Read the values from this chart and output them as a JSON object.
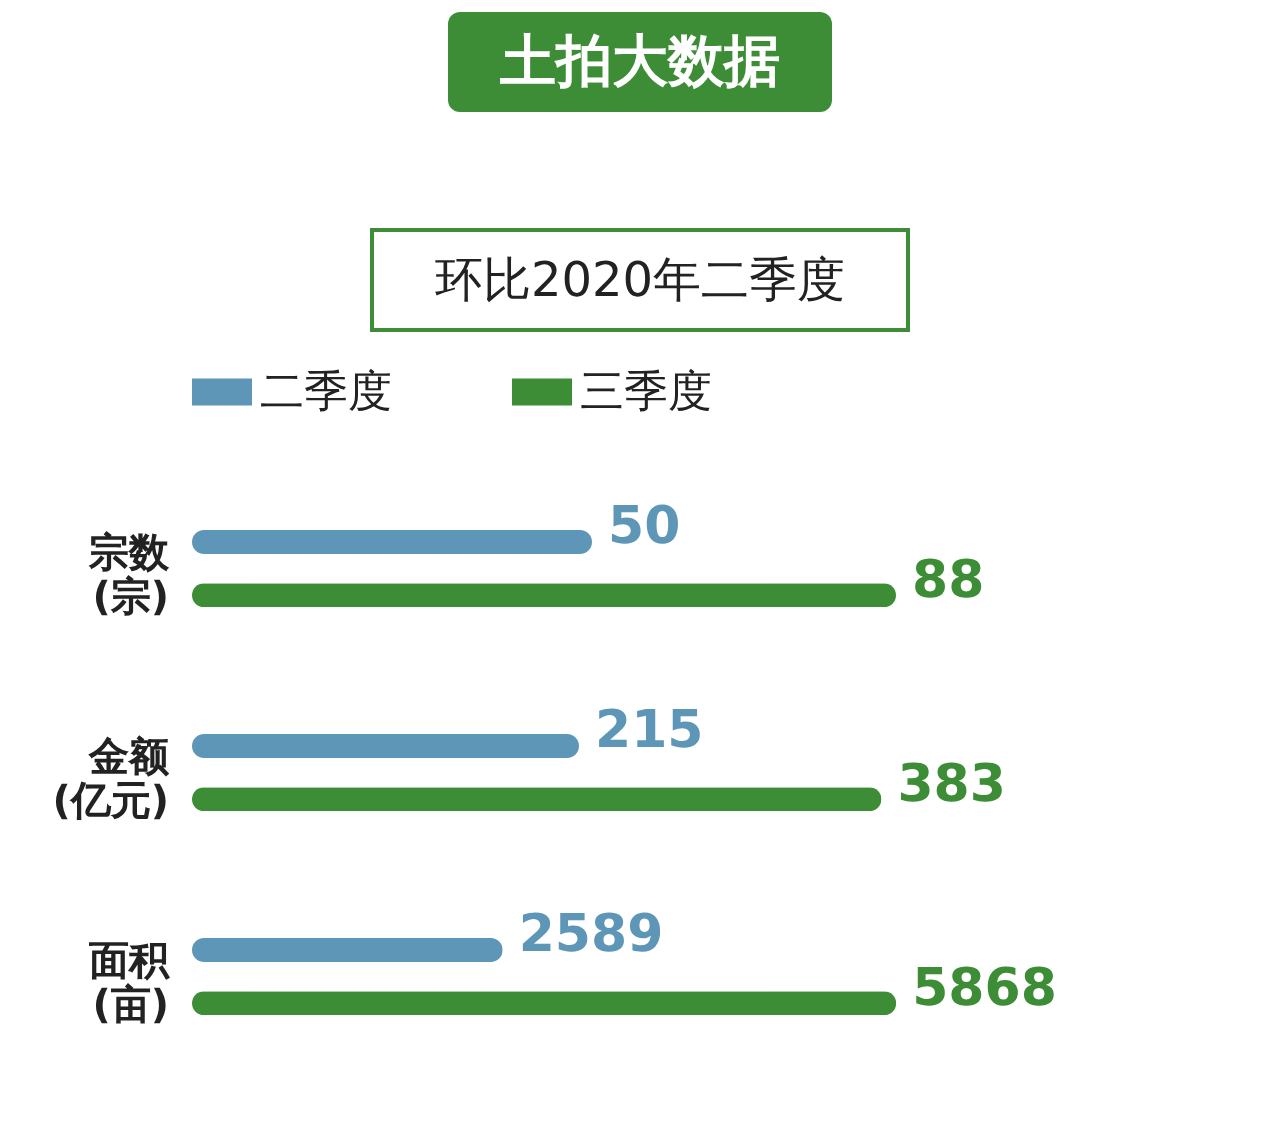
{
  "chart_data": [
    {
      "type": "bar",
      "orientation": "horizontal",
      "title": "土拍大数据",
      "subtitle": "环比2020年二季度",
      "categories": [
        "宗数\n(宗)"
      ],
      "legend": "top",
      "data_labels": true,
      "series": [
        {
          "name": "二季度",
          "color": "#5e96b8",
          "values": [
            50
          ]
        },
        {
          "name": "三季度",
          "color": "#3c8d35",
          "values": [
            88
          ]
        }
      ]
    },
    {
      "type": "bar",
      "orientation": "horizontal",
      "categories": [
        "金额\n(亿元)"
      ],
      "data_labels": true,
      "series": [
        {
          "color": "#5e96b8",
          "values": [
            215
          ]
        },
        {
          "color": "#3c8d35",
          "values": [
            383
          ]
        }
      ]
    },
    {
      "type": "bar",
      "orientation": "horizontal",
      "categories": [
        "面积\n(亩)"
      ],
      "data_labels": true,
      "series": [
        {
          "color": "#5e96b8",
          "values": [
            2589
          ]
        },
        {
          "color": "#3c8d35",
          "values": [
            5868
          ]
        }
      ]
    }
  ]
}
